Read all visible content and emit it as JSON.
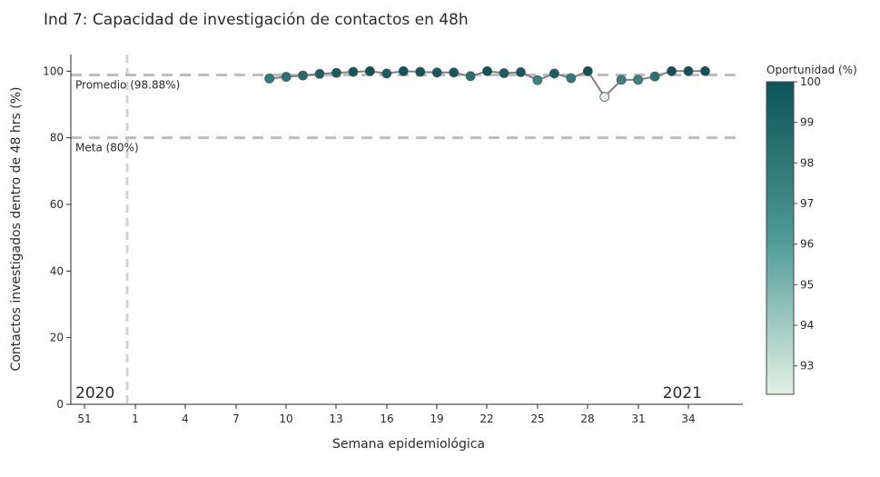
{
  "chart_data": {
    "type": "scatter",
    "title": "Ind 7: Capacidad de investigación de contactos en 48h",
    "xlabel": "Semana epidemiológica",
    "ylabel": "Contactos investigados dentro de 48 hrs (%)",
    "ylim": [
      0,
      105
    ],
    "y_ticks": [
      0,
      20,
      40,
      60,
      80,
      100
    ],
    "x_tick_labels": [
      "51",
      "1",
      "4",
      "7",
      "10",
      "13",
      "16",
      "19",
      "22",
      "25",
      "28",
      "31",
      "34"
    ],
    "grid": false,
    "year_labels": [
      "2020",
      "2021"
    ],
    "reference_lines": [
      {
        "label": "Promedio (98.88%)",
        "value": 98.88
      },
      {
        "label": "Meta (80%)",
        "value": 80
      }
    ],
    "colorbar": {
      "title": "Oportunidad (%)",
      "range": [
        92.3,
        100
      ],
      "ticks": [
        93,
        94,
        95,
        96,
        97,
        98,
        99,
        100
      ],
      "color_low": "#e3f0e3",
      "color_mid": "#4d9a96",
      "color_high": "#0e5359"
    },
    "x": [
      9,
      10,
      11,
      12,
      13,
      14,
      15,
      16,
      17,
      18,
      19,
      20,
      21,
      22,
      23,
      24,
      25,
      26,
      27,
      28,
      29,
      30,
      31,
      32,
      33,
      34,
      35
    ],
    "values": [
      97.8,
      98.3,
      98.7,
      99.2,
      99.5,
      99.8,
      100,
      99.3,
      100,
      99.8,
      99.6,
      99.6,
      98.5,
      100,
      99.4,
      99.7,
      97.3,
      99.3,
      97.9,
      100,
      92.3,
      97.4,
      97.4,
      98.4,
      100,
      100,
      100
    ]
  }
}
